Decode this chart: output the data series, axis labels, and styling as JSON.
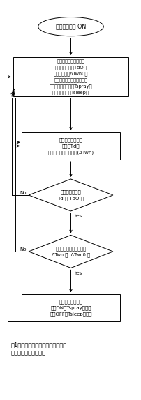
{
  "title": "図1　気温－自然湿球温度差に基づ\nく細霹冷房の噴霧方法",
  "background_color": "#ffffff",
  "start_text": "システム電源 ON",
  "input_text": "（入力された設定値）\n噴霧開始温度（TdO）\n噴霧判定値（ΔTwn0）\n（気温－自然湿球温度差）\n最長連続噴霧時間（Tspray）\n最短休止時間（Tsleep）",
  "measure_text": "（現在値の測定）\n気温（Td）\n気温－自然湿球温度差(ΔTwn)",
  "d1_text": "（気温の判断）\nTd ＞ TdO ？",
  "d2_text": "（自然湿球温度の判断）\nΔTwn ＞  ΔTwn0 ？",
  "action_text": "（噴霧動作１回）\n噴霧ON（Tsprayの間）\n噴霧OFF（Tsleepの間）",
  "no_label": "No",
  "yes_label": "Yes"
}
